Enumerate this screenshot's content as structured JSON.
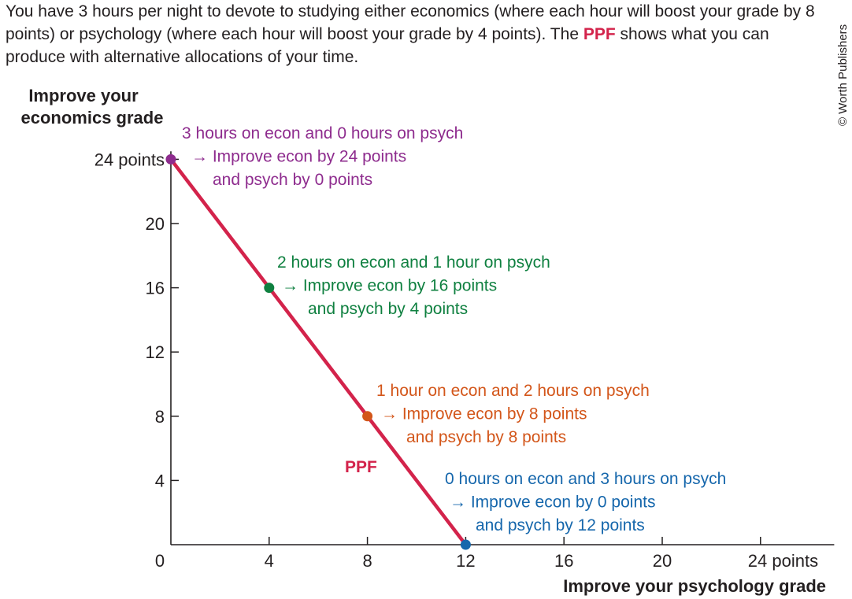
{
  "intro": {
    "text_before": "You have 3 hours per night to devote to studying either economics (where each hour will boost your grade by 8 points) or psychology (where each hour will boost your grade by 4 points). The ",
    "highlight": "PPF",
    "text_after": " shows what you can produce with alternative allocations of your time."
  },
  "credit": "© Worth Publishers",
  "chart_data": {
    "type": "line",
    "xlabel": "Improve your psychology grade",
    "ylabel_line1": "Improve your",
    "ylabel_line2": "economics grade",
    "xlim": [
      0,
      27
    ],
    "ylim": [
      0,
      24.5
    ],
    "x_ticks": [
      {
        "value": 0,
        "label": "0"
      },
      {
        "value": 4,
        "label": "4"
      },
      {
        "value": 8,
        "label": "8"
      },
      {
        "value": 12,
        "label": "12"
      },
      {
        "value": 16,
        "label": "16"
      },
      {
        "value": 20,
        "label": "20"
      },
      {
        "value": 24,
        "label": "24 points"
      }
    ],
    "y_ticks": [
      {
        "value": 4,
        "label": "4"
      },
      {
        "value": 8,
        "label": "8"
      },
      {
        "value": 12,
        "label": "12"
      },
      {
        "value": 16,
        "label": "16"
      },
      {
        "value": 20,
        "label": "20"
      },
      {
        "value": 24,
        "label": "24 points"
      }
    ],
    "series": [
      {
        "name": "PPF",
        "color": "#d3234b",
        "x": [
          0,
          12
        ],
        "y": [
          24,
          0
        ]
      }
    ],
    "points": [
      {
        "x": 0,
        "y": 24,
        "color": "#8e2c8e",
        "lines": [
          "3 hours on econ and 0 hours on psych",
          "→ Improve econ by 24 points",
          "and psych by 0 points"
        ]
      },
      {
        "x": 4,
        "y": 16,
        "color": "#0f8040",
        "lines": [
          "2 hours on econ and 1 hour on psych",
          "→ Improve econ by 16 points",
          "and psych by 4 points"
        ]
      },
      {
        "x": 8,
        "y": 8,
        "color": "#d3561a",
        "lines": [
          "1 hour on econ and 2 hours on psych",
          "→ Improve econ by 8 points",
          "and psych by 8 points"
        ]
      },
      {
        "x": 12,
        "y": 0,
        "color": "#1667ac",
        "lines": [
          "0 hours on econ and 3 hours on psych",
          "→ Improve econ by 0 points",
          "and psych by 12 points"
        ]
      }
    ]
  }
}
